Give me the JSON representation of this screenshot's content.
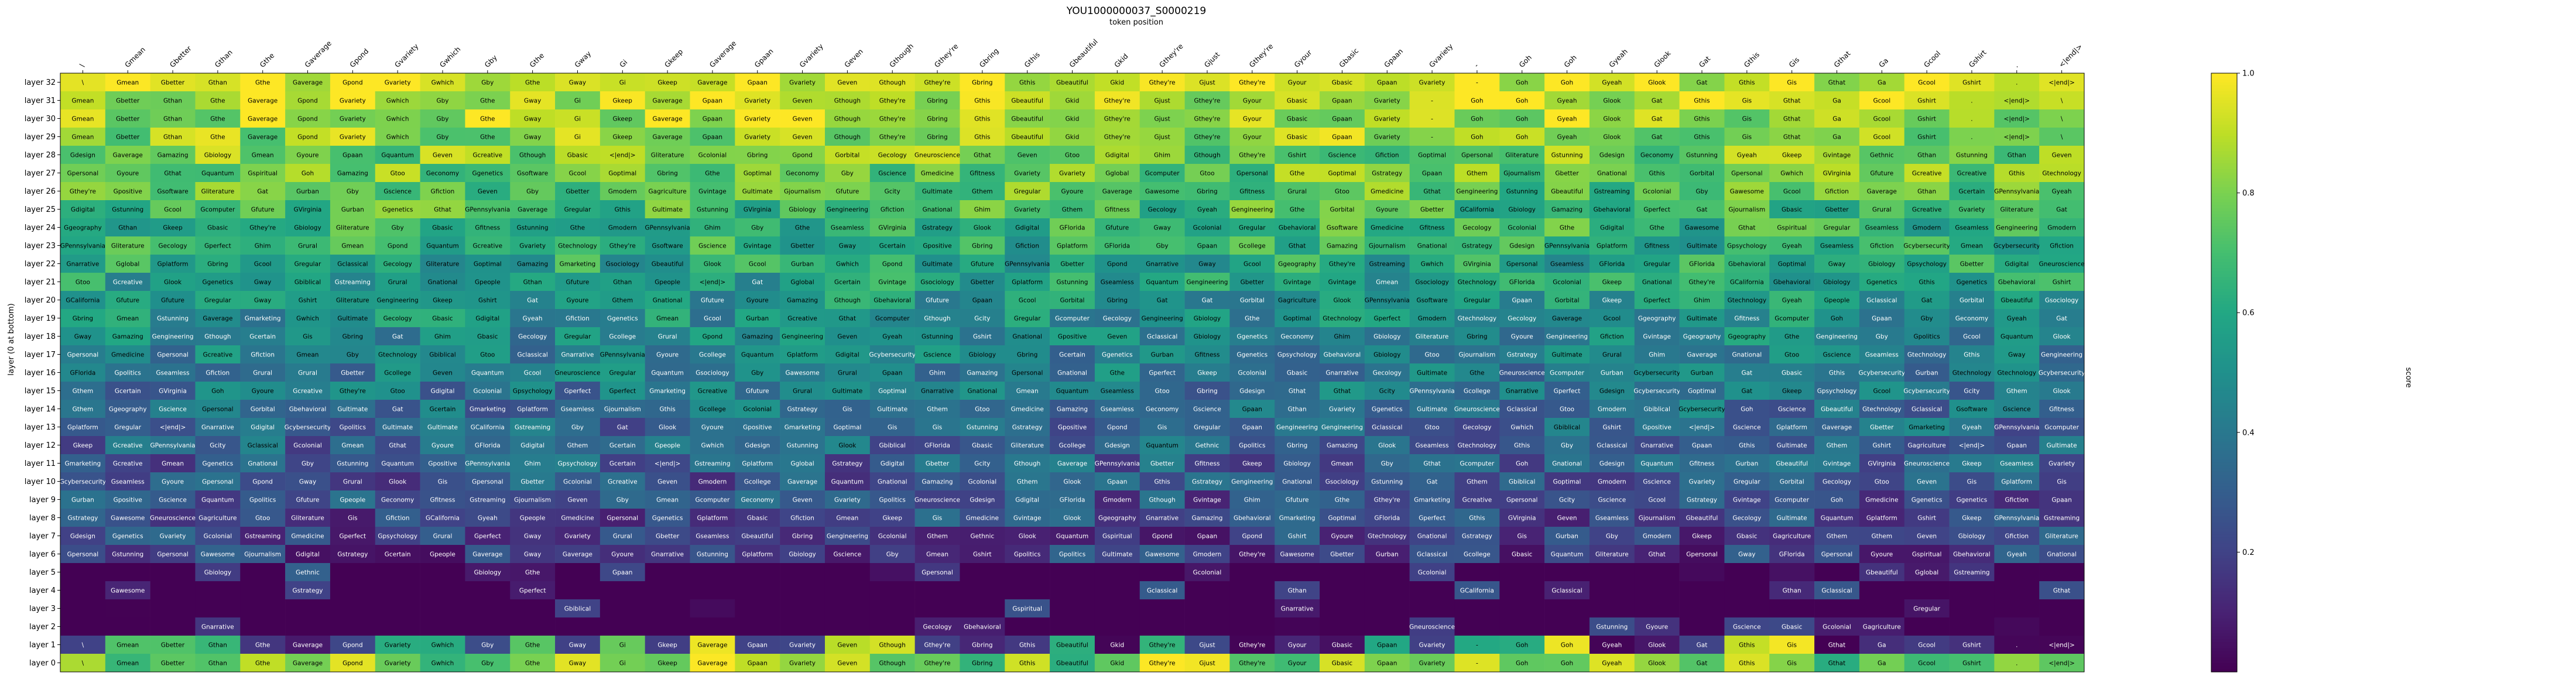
{
  "chart_data": {
    "type": "heatmap",
    "title": "YOU1000000037_S0000219",
    "subtitle": "token position",
    "ylabel": "layer (0 at bottom)",
    "colorbar_label": "score",
    "colorbar_ticks": [
      "0.2",
      "0.4",
      "0.6",
      "0.8",
      "1.0"
    ],
    "colorbar_tick_values": [
      0.2,
      0.4,
      0.6,
      0.8,
      1.0
    ],
    "colorbar_range": [
      0.0,
      1.0
    ],
    "colormap": "viridis",
    "x_tokens": [
      "\\",
      "Gmean",
      "Gbetter",
      "Gthan",
      "Gthe",
      "Gaverage",
      "Gpond",
      "Gvariety",
      "Gwhich",
      "Gby",
      "Gthe",
      "Gway",
      "Gi",
      "Gkeep",
      "Gaverage",
      "Gpaan",
      "Gvariety",
      "Geven",
      "Gthough",
      "Gthey're",
      "Gbring",
      "Gthis",
      "Gbeautiful",
      "Gkid",
      "Gthey're",
      "Gjust",
      "Gthey're",
      "Gyour",
      "Gbasic",
      "Gpaan",
      "Gvariety",
      "-",
      "Goh",
      "Goh",
      "Gyeah",
      "Glook",
      "Gat",
      "Gthis",
      "Gis",
      "Gthat",
      "Ga",
      "Gcool",
      "Gshirt",
      ".",
      "<|end|>"
    ],
    "layers": [
      "layer 32",
      "layer 31",
      "layer 30",
      "layer 29",
      "layer 28",
      "layer 27",
      "layer 26",
      "layer 25",
      "layer 24",
      "layer 23",
      "layer 22",
      "layer 21",
      "layer 20",
      "layer 19",
      "layer 18",
      "layer 17",
      "layer 16",
      "layer 15",
      "layer 14",
      "layer 13",
      "layer 12",
      "layer 11",
      "layer 10",
      "layer 9",
      "layer 8",
      "layer 7",
      "layer 6",
      "layer 5",
      "layer 4",
      "layer 3",
      "layer 2",
      "layer 1",
      "layer 0"
    ],
    "vocab": [
      "Gmean",
      "Gbetter",
      "Gthan",
      "Gthe",
      "Gaverage",
      "Gpond",
      "Gvariety",
      "Gwhich",
      "Gby",
      "Gway",
      "Gkeep",
      "Gpaan",
      "Geven",
      "Gthough",
      "Gthey're",
      "Gbring",
      "Gthis",
      "Gbeautiful",
      "Gcity",
      "Gyoure",
      "Gbasic",
      "Gtoo",
      "Goh",
      "Gyeah",
      "Glook",
      "Gat",
      "Gis",
      "Gthat",
      "Gcool",
      "Gshirt",
      "<|end|>",
      "GFlorida",
      "GVirginia",
      "GPennsylvania",
      "GCalifornia",
      "Gsociology",
      "Gmarketing",
      "Gcomputer",
      "Gcollege",
      "Geconomy",
      "Gpsychology",
      "Gsoftware",
      "Ggenetics",
      "Gtechnology",
      "Gcybersecurity",
      "Gneuroscience",
      "Ggeography",
      "Gbehavioral",
      "Gbiology",
      "Gpolitics",
      "Gfitness",
      "Gjournalism",
      "Gdesign",
      "Gscience",
      "Gengineering",
      "Gmedicine",
      "Gstrategy",
      "Gstreaming",
      "Gliterature",
      "Gagriculture",
      "Gecology",
      "Gcolonial",
      "Gbiblical",
      "Gspiritual",
      "Gquantum",
      "Gorbital",
      "Gdigital",
      "Gvintage",
      "Gclassical",
      "Gmodern",
      "Gurban",
      "Grural",
      "Gfiction",
      "Gnarrative",
      "Gcreative",
      "Gpositive",
      "Gseamless",
      "Gplatform",
      "Gfuture",
      "Gpeople",
      "Gthem",
      "Ghim",
      "Gpersonal",
      "Goptimal",
      "Gperfect",
      "Gultimate",
      "Gstunning",
      "Gawesome",
      "Gamazing",
      "Gcertain",
      "Gregular",
      "Gglobal",
      "Gnational",
      "Gethnic"
    ],
    "note": "Each cell shows the top decoded token (logit lens) and a score in [0,1] mapped to the viridis colormap.",
    "seed": 219
  }
}
